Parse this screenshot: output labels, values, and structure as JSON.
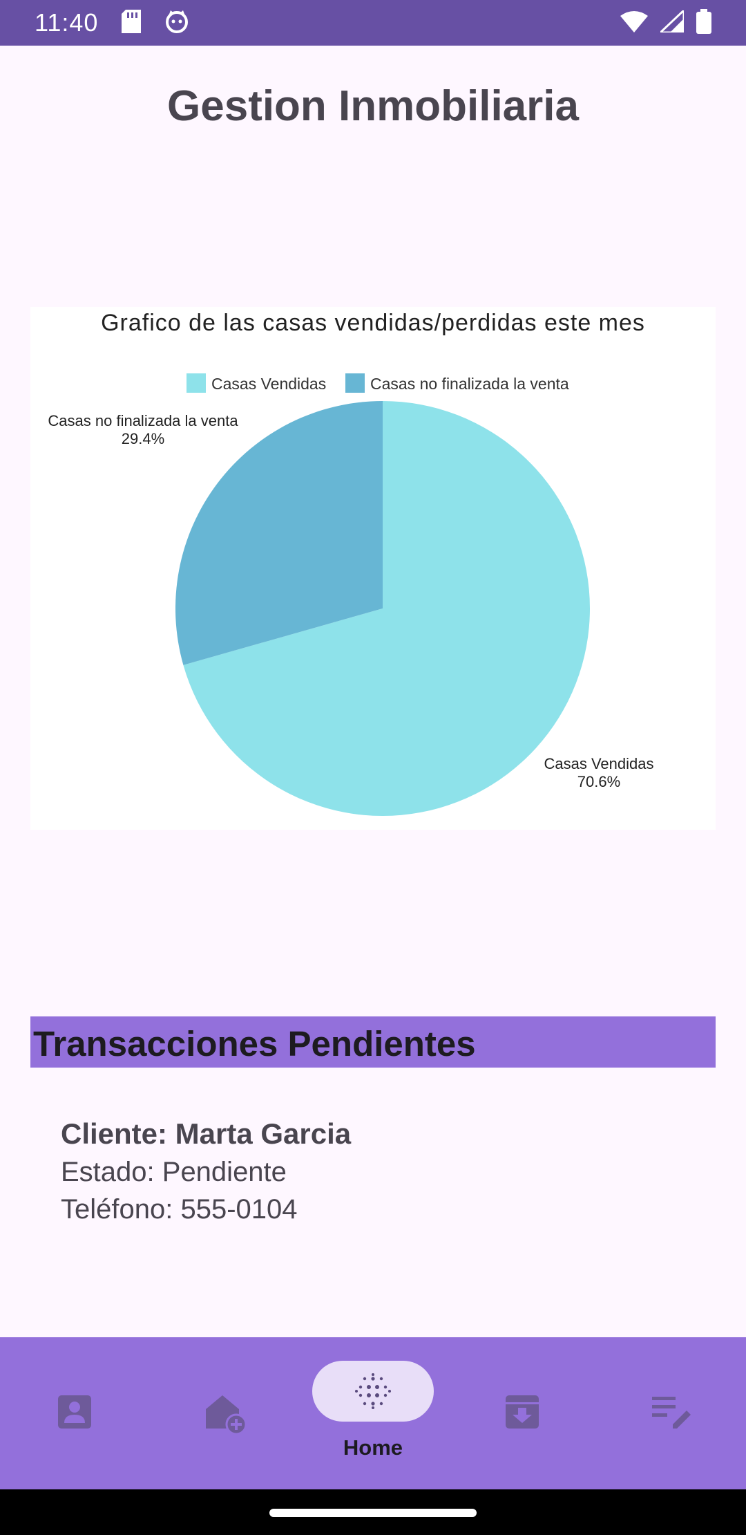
{
  "status_bar": {
    "time": "11:40",
    "icons": [
      "sd-card-icon",
      "cat-face-icon",
      "wifi-icon",
      "cell-signal-icon",
      "battery-icon"
    ]
  },
  "header": {
    "title": "Gestion Inmobiliaria"
  },
  "chart_data": {
    "type": "pie",
    "title": "Grafico de las casas vendidas/perdidas este mes",
    "legend_position": "top",
    "categories": [
      "Casas Vendidas",
      "Casas no finalizada la venta"
    ],
    "values": [
      70.6,
      29.4
    ],
    "value_labels": [
      "70.6%",
      "29.4%"
    ],
    "colors": [
      "#8EE2EA",
      "#67B6D4"
    ]
  },
  "pending": {
    "title": "Transacciones Pendientes",
    "items": [
      {
        "client": "Cliente: Marta Garcia",
        "status": "Estado: Pendiente",
        "phone": "Teléfono: 555-0104"
      }
    ]
  },
  "bottom_nav": {
    "active": "Home",
    "items": [
      {
        "id": "contacts",
        "icon": "contact-card-icon"
      },
      {
        "id": "add-property",
        "icon": "house-add-icon"
      },
      {
        "id": "home",
        "icon": "dots-grid-icon",
        "label": "Home"
      },
      {
        "id": "archive",
        "icon": "archive-download-icon"
      },
      {
        "id": "notes",
        "icon": "edit-list-icon"
      }
    ]
  },
  "colors": {
    "status_bar": "#6750A4",
    "background": "#FEF7FF",
    "section_header": "#9370DB",
    "nav_background": "#9370DB",
    "nav_active_pill": "#E8DEF8"
  }
}
